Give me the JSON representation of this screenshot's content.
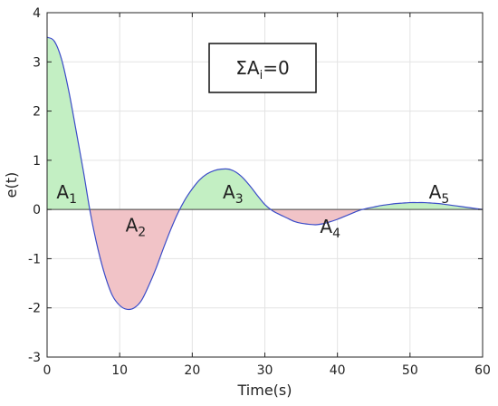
{
  "chart_data": {
    "type": "area",
    "xlabel": "Time(s)",
    "ylabel": "e(t)",
    "xlim": [
      0,
      60
    ],
    "ylim": [
      -3,
      4
    ],
    "xticks": [
      0,
      10,
      20,
      30,
      40,
      50,
      60
    ],
    "yticks": [
      -3,
      -2,
      -1,
      0,
      1,
      2,
      3,
      4
    ],
    "grid": true,
    "colors": {
      "line": "#3b4cc8",
      "positive_fill": "#c3efc3",
      "negative_fill": "#f1c3c7"
    },
    "series": [
      {
        "x": [
          0,
          1,
          2,
          3,
          4,
          5,
          6,
          7,
          8,
          9,
          10,
          11,
          12,
          13,
          14,
          15,
          16,
          17,
          18,
          19,
          20,
          21,
          22,
          23,
          24,
          25,
          26,
          27,
          28,
          29,
          30,
          31,
          32,
          33,
          34,
          35,
          36,
          37,
          38,
          39,
          40,
          41,
          42,
          43,
          44,
          45,
          46,
          47,
          48,
          49,
          50,
          51,
          52,
          53,
          54,
          55,
          56,
          57,
          58,
          59,
          60
        ],
        "y": [
          3.5,
          3.42,
          3.05,
          2.4,
          1.6,
          0.78,
          -0.1,
          -0.8,
          -1.35,
          -1.75,
          -1.95,
          -2.03,
          -2.0,
          -1.85,
          -1.55,
          -1.2,
          -0.8,
          -0.42,
          -0.08,
          0.2,
          0.42,
          0.6,
          0.72,
          0.79,
          0.82,
          0.82,
          0.76,
          0.64,
          0.47,
          0.28,
          0.1,
          -0.02,
          -0.1,
          -0.17,
          -0.24,
          -0.28,
          -0.3,
          -0.31,
          -0.29,
          -0.25,
          -0.2,
          -0.14,
          -0.08,
          -0.02,
          0.02,
          0.05,
          0.08,
          0.1,
          0.12,
          0.13,
          0.14,
          0.14,
          0.14,
          0.13,
          0.12,
          0.1,
          0.08,
          0.06,
          0.04,
          0.02,
          0.0
        ]
      }
    ],
    "area_labels": [
      {
        "main": "A",
        "sub": "1",
        "x": 1.3,
        "y": 0.22
      },
      {
        "main": "A",
        "sub": "2",
        "x": 10.8,
        "y": -0.45
      },
      {
        "main": "A",
        "sub": "3",
        "x": 24.2,
        "y": 0.22
      },
      {
        "main": "A",
        "sub": "4",
        "x": 37.6,
        "y": -0.48
      },
      {
        "main": "A",
        "sub": "5",
        "x": 52.6,
        "y": 0.22
      }
    ],
    "annotation": {
      "sigma": "ΣA",
      "sub": "i",
      "rest": "=0"
    }
  }
}
